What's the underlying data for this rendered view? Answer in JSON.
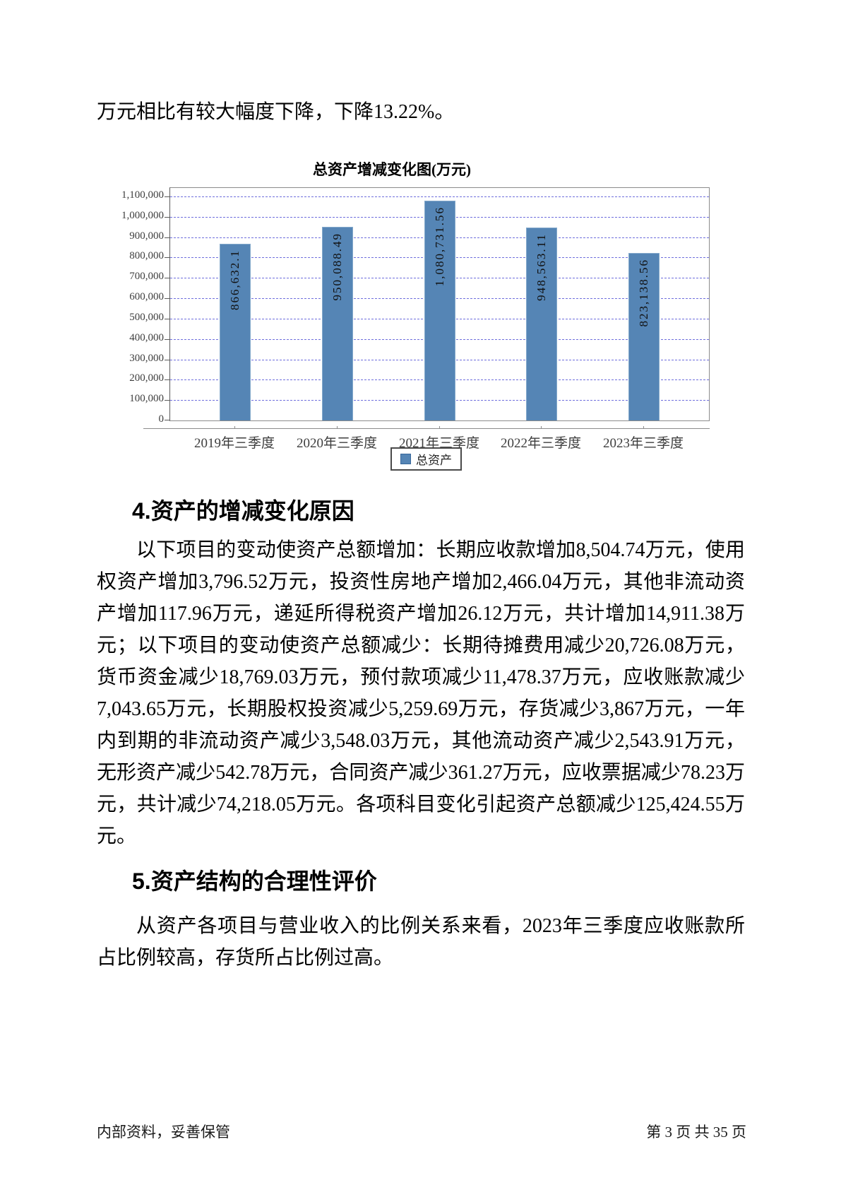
{
  "document": {
    "intro_text": "万元相比有较大幅度下降，下降13.22%。",
    "sections": [
      {
        "heading": "4.资产的增减变化原因",
        "body": "以下项目的变动使资产总额增加：长期应收款增加8,504.74万元，使用权资产增加3,796.52万元，投资性房地产增加2,466.04万元，其他非流动资产增加117.96万元，递延所得税资产增加26.12万元，共计增加14,911.38万元；以下项目的变动使资产总额减少：长期待摊费用减少20,726.08万元，货币资金减少18,769.03万元，预付款项减少11,478.37万元，应收账款减少7,043.65万元，长期股权投资减少5,259.69万元，存货减少3,867万元，一年内到期的非流动资产减少3,548.03万元，其他流动资产减少2,543.91万元，无形资产减少542.78万元，合同资产减少361.27万元，应收票据减少78.23万元，共计减少74,218.05万元。各项科目变化引起资产总额减少125,424.55万元。"
      },
      {
        "heading": "5.资产结构的合理性评价",
        "body": "从资产各项目与营业收入的比例关系来看，2023年三季度应收账款所占比例较高，存货所占比例过高。"
      }
    ],
    "footer": {
      "left": "内部资料，妥善保管",
      "right": "第 3 页  共 35 页"
    }
  },
  "chart_data": {
    "type": "bar",
    "title": "总资产增减变化图(万元)",
    "categories": [
      "2019年三季度",
      "2020年三季度",
      "2021年三季度",
      "2022年三季度",
      "2023年三季度"
    ],
    "series": [
      {
        "name": "总资产",
        "values": [
          866632.1,
          950088.49,
          1080731.56,
          948563.11,
          823138.56
        ]
      }
    ],
    "value_labels": [
      "866,632.1",
      "950,088.49",
      "1,080,731.56",
      "948,563.11",
      "823,138.56"
    ],
    "xlabel": "",
    "ylabel": "",
    "ylim": [
      0,
      1100000
    ],
    "ytick_interval": 100000,
    "ytick_labels": [
      "0",
      "100,000",
      "200,000",
      "300,000",
      "400,000",
      "500,000",
      "600,000",
      "700,000",
      "800,000",
      "900,000",
      "1,000,000",
      "1,100,000"
    ],
    "grid": "horizontal-dashed",
    "legend_position": "bottom",
    "colors": {
      "bar": "#5585b5",
      "gridline": "#6f6fdd",
      "plot_border": "#8c8c8c",
      "axis_text": "#3d3d3d"
    }
  }
}
